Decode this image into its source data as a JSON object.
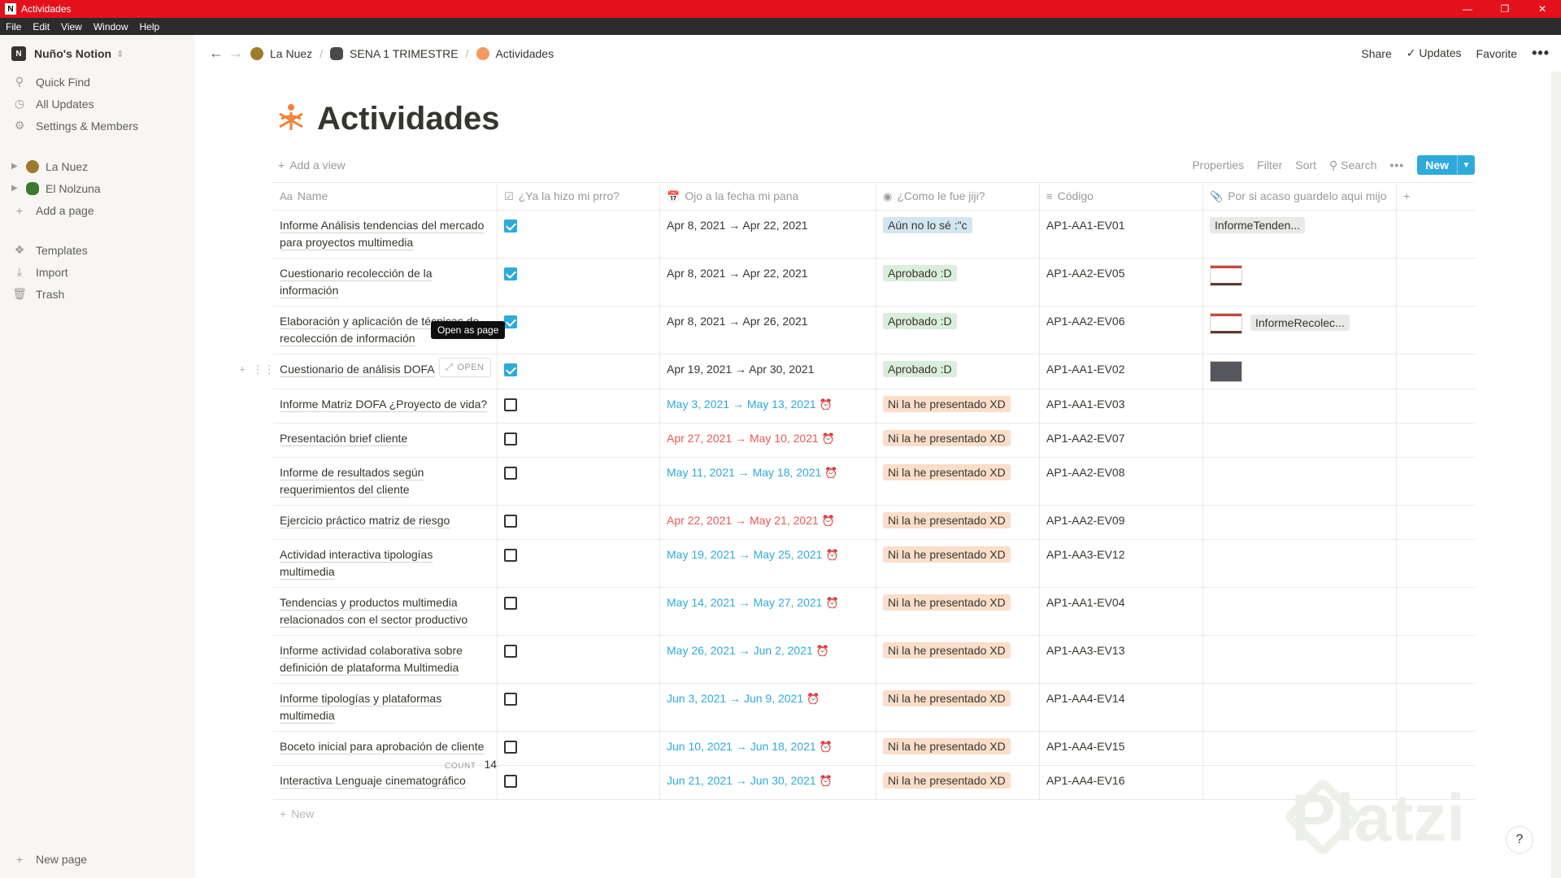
{
  "window": {
    "title": "Actividades",
    "menu": [
      "File",
      "Edit",
      "View",
      "Window",
      "Help"
    ]
  },
  "sidebar": {
    "workspace": "Nuño's Notion",
    "workspace_initial": "N",
    "top_items": [
      {
        "label": "Quick Find",
        "icon": "search-icon"
      },
      {
        "label": "All Updates",
        "icon": "clock-icon"
      },
      {
        "label": "Settings & Members",
        "icon": "gear-icon"
      }
    ],
    "pages": [
      {
        "label": "La Nuez",
        "icon": "nut-icon"
      },
      {
        "label": "El Nolzuna",
        "icon": "turtle-icon"
      }
    ],
    "add_page": "Add a page",
    "bottom_items": [
      {
        "label": "Templates",
        "icon": "templates-icon"
      },
      {
        "label": "Import",
        "icon": "import-icon"
      },
      {
        "label": "Trash",
        "icon": "trash-icon"
      }
    ],
    "new_page": "New page"
  },
  "topbar": {
    "breadcrumbs": [
      "La Nuez",
      "SENA 1 TRIMESTRE",
      "Actividades"
    ],
    "share": "Share",
    "updates": "Updates",
    "favorite": "Favorite"
  },
  "page": {
    "title": "Actividades"
  },
  "viewbar": {
    "add_view": "Add a view",
    "properties": "Properties",
    "filter": "Filter",
    "sort": "Sort",
    "search": "Search",
    "new": "New"
  },
  "table": {
    "columns": [
      {
        "label": "Name",
        "icon": "Aa"
      },
      {
        "label": "¿Ya la hizo mi prro?",
        "icon": "checkbox-icon"
      },
      {
        "label": "Ojo a la fecha mi pana",
        "icon": "calendar-icon"
      },
      {
        "label": "¿Como le fue jiji?",
        "icon": "select-icon"
      },
      {
        "label": "Código",
        "icon": "text-icon"
      },
      {
        "label": "Por si acaso guardelo aqui mijo",
        "icon": "paperclip-icon"
      }
    ],
    "rows": [
      {
        "name": "Informe Análisis tendencias del mercado para proyectos multimedia",
        "done": true,
        "date": "Apr 8, 2021 → Apr 22, 2021",
        "date_state": "normal",
        "status": "Aún no lo sé :\"c",
        "status_color": "gray",
        "code": "AP1-AA1-EV01",
        "files": [
          {
            "type": "pill",
            "label": "InformeTenden..."
          }
        ]
      },
      {
        "name": "Cuestionario recolección de la información",
        "done": true,
        "date": "Apr 8, 2021 → Apr 22, 2021",
        "date_state": "normal",
        "status": "Aprobado :D",
        "status_color": "green",
        "code": "AP1-AA2-EV05",
        "files": [
          {
            "type": "thumb-red"
          }
        ]
      },
      {
        "name": "Elaboración y aplicación de técnicas de recolección de información",
        "done": true,
        "date": "Apr 8, 2021 → Apr 26, 2021",
        "date_state": "normal",
        "status": "Aprobado :D",
        "status_color": "green",
        "code": "AP1-AA2-EV06",
        "files": [
          {
            "type": "thumb-red"
          },
          {
            "type": "pill",
            "label": "InformeRecolec..."
          }
        ]
      },
      {
        "name": "Cuestionario de análisis DOFA",
        "done": true,
        "date": "Apr 19, 2021 → Apr 30, 2021",
        "date_state": "normal",
        "status": "Aprobado :D",
        "status_color": "green",
        "code": "AP1-AA1-EV02",
        "files": [
          {
            "type": "thumb-dark"
          }
        ],
        "hover": true
      },
      {
        "name": "Informe Matriz DOFA ¿Proyecto de vida?",
        "done": false,
        "date": "May 3, 2021 → May 13, 2021",
        "date_state": "upcoming",
        "status": "Ni la he presentado XD",
        "status_color": "orange",
        "code": "AP1-AA1-EV03",
        "files": []
      },
      {
        "name": "Presentación brief cliente",
        "done": false,
        "date": "Apr 27, 2021 → May 10, 2021",
        "date_state": "overdue",
        "status": "Ni la he presentado XD",
        "status_color": "orange",
        "code": "AP1-AA2-EV07",
        "files": []
      },
      {
        "name": "Informe de resultados según requerimientos del cliente",
        "done": false,
        "date": "May 11, 2021 → May 18, 2021",
        "date_state": "upcoming",
        "status": "Ni la he presentado XD",
        "status_color": "orange",
        "code": "AP1-AA2-EV08",
        "files": []
      },
      {
        "name": "Ejercicio práctico matriz de riesgo",
        "done": false,
        "date": "Apr 22, 2021 → May 21, 2021",
        "date_state": "overdue",
        "status": "Ni la he presentado XD",
        "status_color": "orange",
        "code": "AP1-AA2-EV09",
        "files": []
      },
      {
        "name": "Actividad interactiva tipologías multimedia",
        "done": false,
        "date": "May 19, 2021 → May 25, 2021",
        "date_state": "upcoming",
        "status": "Ni la he presentado XD",
        "status_color": "orange",
        "code": "AP1-AA3-EV12",
        "files": []
      },
      {
        "name": "Tendencias y productos multimedia relacionados con el sector productivo",
        "done": false,
        "date": "May 14, 2021 → May 27, 2021",
        "date_state": "upcoming",
        "status": "Ni la he presentado XD",
        "status_color": "orange",
        "code": "AP1-AA1-EV04",
        "files": []
      },
      {
        "name": "Informe actividad colaborativa sobre definición de plataforma Multimedia",
        "done": false,
        "date": "May 26, 2021 → Jun 2, 2021",
        "date_state": "upcoming",
        "status": "Ni la he presentado XD",
        "status_color": "orange",
        "code": "AP1-AA3-EV13",
        "files": []
      },
      {
        "name": "Informe tipologías y plataformas multimedia",
        "done": false,
        "date": "Jun 3, 2021 → Jun 9, 2021",
        "date_state": "upcoming",
        "status": "Ni la he presentado XD",
        "status_color": "orange",
        "code": "AP1-AA4-EV14",
        "files": []
      },
      {
        "name": "Boceto inicial para aprobación de cliente",
        "done": false,
        "date": "Jun 10, 2021 → Jun 18, 2021",
        "date_state": "upcoming",
        "status": "Ni la he presentado XD",
        "status_color": "orange",
        "code": "AP1-AA4-EV15",
        "files": []
      },
      {
        "name": "Interactiva Lenguaje cinematográfico",
        "done": false,
        "date": "Jun 21, 2021 → Jun 30, 2021",
        "date_state": "upcoming",
        "status": "Ni la he presentado XD",
        "status_color": "orange",
        "code": "AP1-AA4-EV16",
        "files": []
      }
    ],
    "open_label": "OPEN",
    "tooltip": "Open as page",
    "new_row": "New",
    "count_label": "COUNT",
    "count_value": "14"
  },
  "watermark": "Platzi",
  "help": "?",
  "colors": {
    "accent": "#2eaadc",
    "titlebar": "#e3111b",
    "overdue": "#eb5757"
  }
}
